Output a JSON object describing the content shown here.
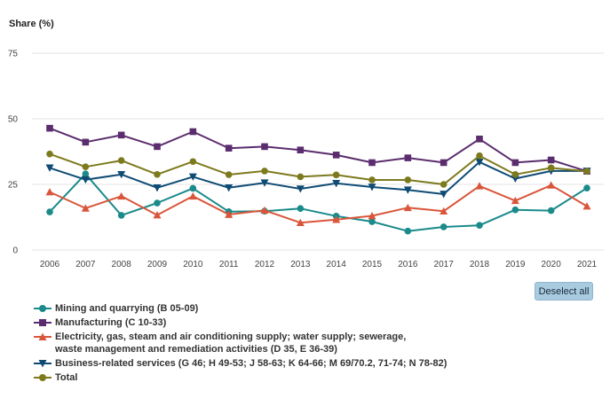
{
  "chart_data": {
    "type": "line",
    "title": "",
    "ylabel": "Share (%)",
    "xlabel": "",
    "ylim": [
      0,
      75
    ],
    "yticks": [
      0,
      25,
      50,
      75
    ],
    "grid": true,
    "legend_position": "bottom-left",
    "x": [
      "2006",
      "2007",
      "2008",
      "2009",
      "2010",
      "2011",
      "2012",
      "2013",
      "2014",
      "2015",
      "2016",
      "2017",
      "2018",
      "2019",
      "2020",
      "2021"
    ],
    "series": [
      {
        "name": "Mining and quarrying (B 05-09)",
        "color": "#1a8a8a",
        "marker": "circle",
        "values": [
          14.5,
          29.0,
          13.2,
          17.9,
          23.5,
          14.6,
          14.8,
          15.8,
          12.9,
          10.8,
          7.2,
          8.8,
          9.4,
          15.3,
          15.0,
          23.6
        ]
      },
      {
        "name": "Manufacturing (C 10-33)",
        "color": "#5b2d6e",
        "marker": "square",
        "values": [
          46.4,
          41.1,
          43.8,
          39.4,
          45.1,
          38.8,
          39.4,
          38.1,
          36.2,
          33.3,
          35.1,
          33.3,
          42.3,
          33.3,
          34.3,
          30.0
        ]
      },
      {
        "name": "Electricity, gas, steam and air conditioning supply; water supply; sewerage, waste management and remediation activities (D 35, E 36-39)",
        "color": "#d9563b",
        "marker": "triangle",
        "values": [
          22.1,
          15.9,
          20.5,
          13.3,
          20.5,
          13.5,
          15.1,
          10.4,
          11.6,
          13.0,
          16.1,
          14.8,
          24.4,
          18.8,
          24.7,
          16.7
        ]
      },
      {
        "name": "Business-related services (G 46; H 49-53; J 58-63; K 64-66; M 69/70.2, 71-74; N 78-82)",
        "color": "#0f4c75",
        "marker": "triangle-down",
        "values": [
          31.3,
          26.8,
          28.8,
          23.7,
          27.9,
          23.7,
          25.6,
          23.3,
          25.4,
          24.0,
          22.9,
          21.3,
          33.5,
          27.2,
          30.1,
          30.1
        ]
      },
      {
        "name": "Total",
        "color": "#7d7a1e",
        "marker": "circle",
        "values": [
          36.6,
          31.7,
          34.1,
          28.8,
          33.7,
          28.7,
          30.1,
          27.9,
          28.6,
          26.7,
          26.7,
          25.0,
          35.9,
          28.8,
          31.3,
          30.0
        ]
      }
    ]
  },
  "legend_labels": {
    "mining": "Mining and quarrying (B 05-09)",
    "manufacturing": "Manufacturing (C 10-33)",
    "electricity_line1": "Electricity, gas, steam and air conditioning supply; water supply; sewerage,",
    "electricity_line2": "waste management and remediation activities (D 35, E 36-39)",
    "business": "Business-related services (G 46; H 49-53; J 58-63; K 64-66; M 69/70.2, 71-74; N 78-82)",
    "total": "Total"
  },
  "controls": {
    "deselect_all": "Deselect all"
  }
}
